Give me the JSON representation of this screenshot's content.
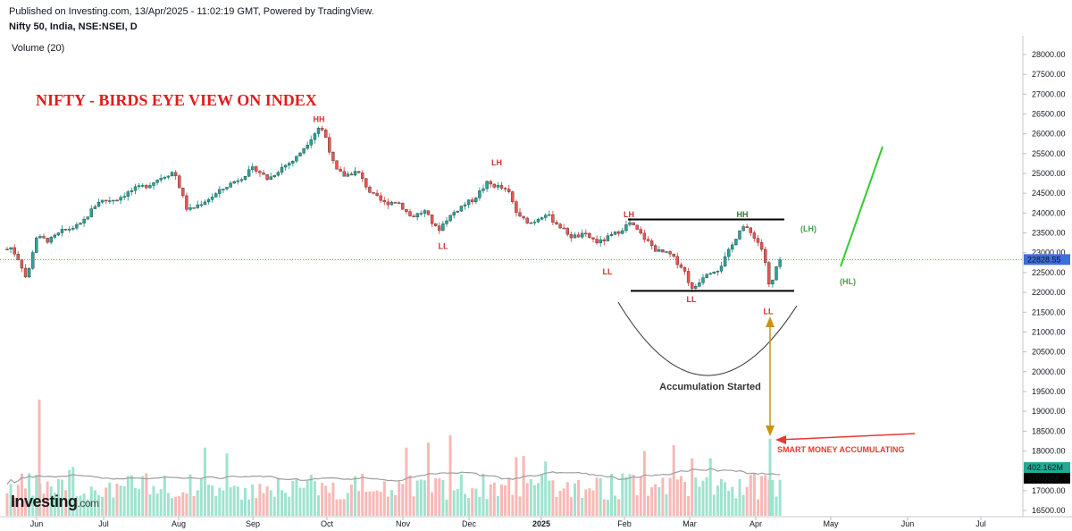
{
  "header": {
    "published": "Published on Investing.com, 13/Apr/2025 - 11:02:19 GMT, Powered by TradingView.",
    "symbol": "Nifty 50, India, NSE:NSEI, D",
    "volume_label": "Volume (20)"
  },
  "logo": {
    "text": "Investing",
    "suffix": ".com"
  },
  "chart_data": {
    "type": "candlestick",
    "title": "NIFTY - BIRDS EYE VIEW ON INDEX",
    "y_ticks": [
      "28000.00",
      "27500.00",
      "27000.00",
      "26500.00",
      "26000.00",
      "25500.00",
      "25000.00",
      "24500.00",
      "24000.00",
      "23500.00",
      "23000.00",
      "22500.00",
      "22000.00",
      "21500.00",
      "21000.00",
      "20500.00",
      "20000.00",
      "19500.00",
      "19000.00",
      "18500.00",
      "18000.00",
      "17500.00",
      "17000.00",
      "16500.00"
    ],
    "ylim": [
      16400,
      28300
    ],
    "x_ticks": [
      {
        "label": "Jun",
        "bold": false
      },
      {
        "label": "Jul",
        "bold": false
      },
      {
        "label": "Aug",
        "bold": false
      },
      {
        "label": "Sep",
        "bold": false
      },
      {
        "label": "Oct",
        "bold": false
      },
      {
        "label": "Nov",
        "bold": false
      },
      {
        "label": "Dec",
        "bold": false
      },
      {
        "label": "2025",
        "bold": true
      },
      {
        "label": "Feb",
        "bold": false
      },
      {
        "label": "Mar",
        "bold": false
      },
      {
        "label": "Apr",
        "bold": false
      },
      {
        "label": "May",
        "bold": false
      },
      {
        "label": "Jun",
        "bold": false
      },
      {
        "label": "Jul",
        "bold": false
      }
    ],
    "last_price": "22828.55",
    "volume_last": "402.162M",
    "volume_ma_last": "370.03M",
    "price_path": [
      [
        0,
        22650
      ],
      [
        10,
        23200
      ],
      [
        22,
        22800
      ],
      [
        30,
        22300
      ],
      [
        40,
        23400
      ],
      [
        55,
        23300
      ],
      [
        70,
        23550
      ],
      [
        90,
        23700
      ],
      [
        110,
        24300
      ],
      [
        130,
        24350
      ],
      [
        150,
        24600
      ],
      [
        165,
        24700
      ],
      [
        180,
        24900
      ],
      [
        195,
        25050
      ],
      [
        210,
        24050
      ],
      [
        225,
        24250
      ],
      [
        240,
        24450
      ],
      [
        255,
        24700
      ],
      [
        270,
        24900
      ],
      [
        285,
        25150
      ],
      [
        300,
        24850
      ],
      [
        315,
        25150
      ],
      [
        330,
        25350
      ],
      [
        345,
        25800
      ],
      [
        358,
        26200
      ],
      [
        365,
        25900
      ],
      [
        375,
        25100
      ],
      [
        385,
        24950
      ],
      [
        400,
        25050
      ],
      [
        415,
        24500
      ],
      [
        430,
        24250
      ],
      [
        445,
        24300
      ],
      [
        460,
        23900
      ],
      [
        475,
        24050
      ],
      [
        490,
        23550
      ],
      [
        500,
        23850
      ],
      [
        515,
        24150
      ],
      [
        530,
        24350
      ],
      [
        545,
        24750
      ],
      [
        560,
        24650
      ],
      [
        570,
        24500
      ],
      [
        580,
        23900
      ],
      [
        595,
        23750
      ],
      [
        610,
        24000
      ],
      [
        625,
        23700
      ],
      [
        640,
        23400
      ],
      [
        655,
        23450
      ],
      [
        670,
        23250
      ],
      [
        690,
        23500
      ],
      [
        705,
        23750
      ],
      [
        720,
        23400
      ],
      [
        735,
        23050
      ],
      [
        750,
        22950
      ],
      [
        765,
        22600
      ],
      [
        775,
        22050
      ],
      [
        790,
        22500
      ],
      [
        805,
        22600
      ],
      [
        820,
        23200
      ],
      [
        830,
        23700
      ],
      [
        845,
        23400
      ],
      [
        855,
        23000
      ],
      [
        862,
        22000
      ],
      [
        868,
        22600
      ],
      [
        875,
        22830
      ]
    ],
    "volume_max_label": "Volume (20)",
    "annotations": {
      "swing_labels": [
        {
          "text": "HH",
          "x": 357,
          "y": 26300,
          "color": "#d32f2f"
        },
        {
          "text": "LH",
          "x": 556,
          "y": 25200,
          "color": "#d32f2f"
        },
        {
          "text": "LL",
          "x": 496,
          "y": 23100,
          "color": "#d32f2f"
        },
        {
          "text": "LH",
          "x": 704,
          "y": 23900,
          "color": "#d32f2f"
        },
        {
          "text": "LL",
          "x": 680,
          "y": 22450,
          "color": "#d32f2f"
        },
        {
          "text": "LL",
          "x": 774,
          "y": 21750,
          "color": "#d32f2f"
        },
        {
          "text": "HH",
          "x": 831,
          "y": 23900,
          "color": "#2e7d32"
        },
        {
          "text": "LL",
          "x": 860,
          "y": 21450,
          "color": "#d32f2f"
        },
        {
          "text": "(LH)",
          "x": 905,
          "y": 23540,
          "color": "#43a047"
        },
        {
          "text": "(HL)",
          "x": 949,
          "y": 22200,
          "color": "#43a047"
        }
      ],
      "resistance": {
        "x1": 703,
        "x2": 878,
        "y": 23840
      },
      "support": {
        "x1": 706,
        "x2": 889,
        "y": 22040
      },
      "accumulation_label": "Accumulation Started",
      "smart_money_label": "SMART MONEY ACCUMULATING"
    }
  },
  "colors": {
    "up": "#26a69a",
    "down": "#ef5350",
    "vol_up": "#9fe3cf",
    "vol_down": "#f8b8b6",
    "ma": "#9e9e9e",
    "title": "#e31b1b",
    "accent_blue": "#3d6fd9",
    "accent_green": "#22ab94",
    "projection": "#33cc33",
    "arrow": "#c8960c"
  }
}
